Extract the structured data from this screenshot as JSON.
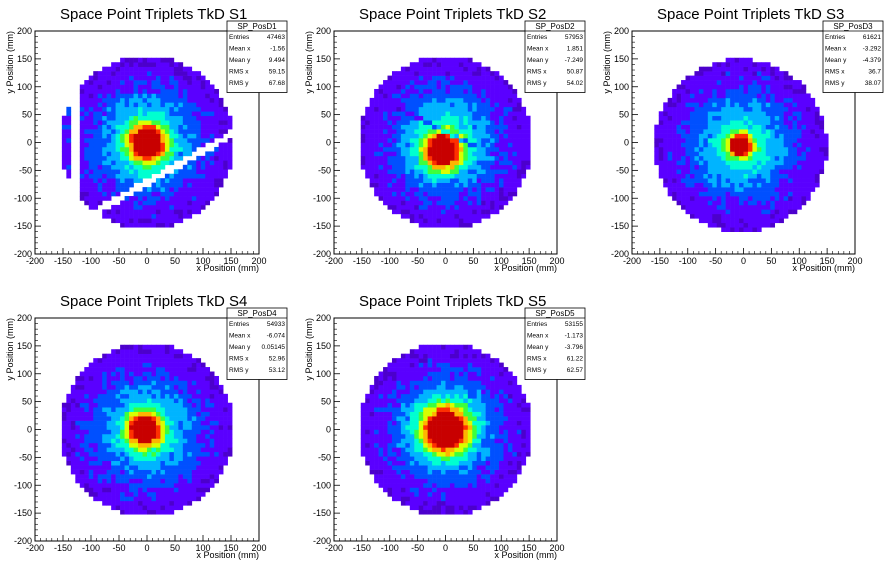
{
  "canvas_background": "#ffffff",
  "chart_data": [
    {
      "type": "heatmap",
      "title": "Space Point Triplets TkD S1",
      "xlabel": "x Position (mm)",
      "ylabel": "y Position (mm)",
      "xlim": [
        -200,
        200
      ],
      "ylim": [
        -200,
        200
      ],
      "xticks": [
        -200,
        -150,
        -100,
        -50,
        0,
        50,
        100,
        150,
        200
      ],
      "yticks": [
        -200,
        -150,
        -100,
        -50,
        0,
        50,
        100,
        150,
        200
      ],
      "hist_name": "SP_PosD1",
      "stats": [
        {
          "label": "Entries",
          "value": "47463"
        },
        {
          "label": "Mean x",
          "value": "-1.56"
        },
        {
          "label": "Mean y",
          "value": "9.494"
        },
        {
          "label": "RMS x",
          "value": "59.15"
        },
        {
          "label": "RMS y",
          "value": "67.68"
        }
      ],
      "distribution": {
        "radius": 155,
        "center_x": 0,
        "center_y": 0,
        "peak_x": 0,
        "peak_y": 0,
        "core_width": 22,
        "gap": "diagonal band from (-120,-140) to (160,20), width 12",
        "left_strip": "x -150 to -140, y -90 to 70"
      }
    },
    {
      "type": "heatmap",
      "title": "Space Point Triplets TkD S2",
      "xlabel": "x Position (mm)",
      "ylabel": "y Position (mm)",
      "xlim": [
        -200,
        200
      ],
      "ylim": [
        -200,
        200
      ],
      "xticks": [
        -200,
        -150,
        -100,
        -50,
        0,
        50,
        100,
        150,
        200
      ],
      "yticks": [
        -200,
        -150,
        -100,
        -50,
        0,
        50,
        100,
        150,
        200
      ],
      "hist_name": "SP_PosD2",
      "stats": [
        {
          "label": "Entries",
          "value": "57953"
        },
        {
          "label": "Mean x",
          "value": "1.851"
        },
        {
          "label": "Mean y",
          "value": "-7.249"
        },
        {
          "label": "RMS x",
          "value": "50.87"
        },
        {
          "label": "RMS y",
          "value": "54.02"
        }
      ],
      "distribution": {
        "radius": 155,
        "center_x": 0,
        "center_y": 0,
        "peak_x": -5,
        "peak_y": -15,
        "core_width": 22,
        "gap": "faint diagonal band through the centre, slope -0.5"
      }
    },
    {
      "type": "heatmap",
      "title": "Space Point Triplets TkD S3",
      "xlabel": "x Position (mm)",
      "ylabel": "y Position (mm)",
      "xlim": [
        -200,
        200
      ],
      "ylim": [
        -200,
        200
      ],
      "xticks": [
        -200,
        -150,
        -100,
        -50,
        0,
        50,
        100,
        150,
        200
      ],
      "yticks": [
        -200,
        -150,
        -100,
        -50,
        0,
        50,
        100,
        150,
        200
      ],
      "hist_name": "SP_PosD3",
      "stats": [
        {
          "label": "Entries",
          "value": "61621"
        },
        {
          "label": "Mean x",
          "value": "-3.292"
        },
        {
          "label": "Mean y",
          "value": "-4.379"
        },
        {
          "label": "RMS x",
          "value": "36.7"
        },
        {
          "label": "RMS y",
          "value": "38.07"
        }
      ],
      "distribution": {
        "radius": 155,
        "center_x": -5,
        "center_y": -5,
        "peak_x": -5,
        "peak_y": -5,
        "core_width": 14
      }
    },
    {
      "type": "heatmap",
      "title": "Space Point Triplets TkD S4",
      "xlabel": "x Position (mm)",
      "ylabel": "y Position (mm)",
      "xlim": [
        -200,
        200
      ],
      "ylim": [
        -200,
        200
      ],
      "xticks": [
        -200,
        -150,
        -100,
        -50,
        0,
        50,
        100,
        150,
        200
      ],
      "yticks": [
        -200,
        -150,
        -100,
        -50,
        0,
        50,
        100,
        150,
        200
      ],
      "hist_name": "SP_PosD4",
      "stats": [
        {
          "label": "Entries",
          "value": "54933"
        },
        {
          "label": "Mean x",
          "value": "-6.074"
        },
        {
          "label": "Mean y",
          "value": "0.05145"
        },
        {
          "label": "RMS x",
          "value": "52.96"
        },
        {
          "label": "RMS y",
          "value": "53.12"
        }
      ],
      "distribution": {
        "radius": 155,
        "center_x": 0,
        "center_y": 0,
        "peak_x": -5,
        "peak_y": 0,
        "core_width": 20,
        "gap": "faint vertical band at x = 40"
      }
    },
    {
      "type": "heatmap",
      "title": "Space Point Triplets TkD S5",
      "xlabel": "x Position (mm)",
      "ylabel": "y Position (mm)",
      "xlim": [
        -200,
        200
      ],
      "ylim": [
        -200,
        200
      ],
      "xticks": [
        -200,
        -150,
        -100,
        -50,
        0,
        50,
        100,
        150,
        200
      ],
      "yticks": [
        -200,
        -150,
        -100,
        -50,
        0,
        50,
        100,
        150,
        200
      ],
      "hist_name": "SP_PosD5",
      "stats": [
        {
          "label": "Entries",
          "value": "53155"
        },
        {
          "label": "Mean x",
          "value": "-1.173"
        },
        {
          "label": "Mean y",
          "value": "-3.796"
        },
        {
          "label": "RMS x",
          "value": "61.22"
        },
        {
          "label": "RMS y",
          "value": "62.57"
        }
      ],
      "distribution": {
        "radius": 155,
        "center_x": 0,
        "center_y": 0,
        "peak_x": 0,
        "peak_y": 0,
        "core_width": 28
      }
    }
  ],
  "palette": [
    "#4c00cc",
    "#5a00ff",
    "#0050ff",
    "#00b4ff",
    "#00ffd0",
    "#3cff3c",
    "#d8ff00",
    "#ffb400",
    "#ff3000",
    "#c80000"
  ]
}
